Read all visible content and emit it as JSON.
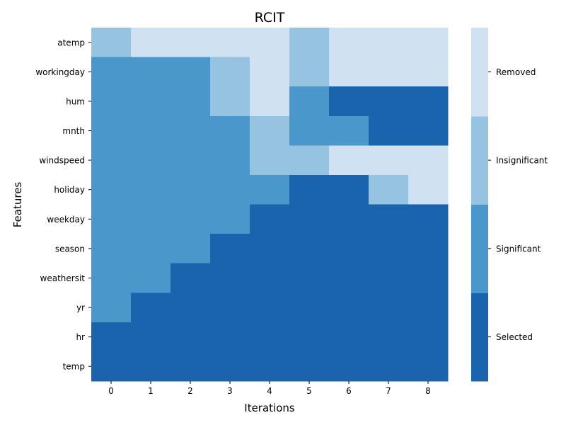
{
  "chart_data": {
    "type": "heatmap",
    "title": "RCIT",
    "xlabel": "Iterations",
    "ylabel": "Features",
    "x": [
      "0",
      "1",
      "2",
      "3",
      "4",
      "5",
      "6",
      "7",
      "8"
    ],
    "y": [
      "atemp",
      "workingday",
      "hum",
      "mnth",
      "windspeed",
      "holiday",
      "weekday",
      "season",
      "weathersit",
      "yr",
      "hr",
      "temp"
    ],
    "legend": {
      "position": "right",
      "categories": [
        "Selected",
        "Significant",
        "Insignificant",
        "Removed"
      ],
      "colors": [
        "#1a64ad",
        "#4a98cb",
        "#96c4e0",
        "#d0e1f2"
      ]
    },
    "values": [
      [
        2,
        3,
        3,
        3,
        3,
        2,
        3,
        3,
        3
      ],
      [
        1,
        1,
        1,
        2,
        3,
        2,
        3,
        3,
        3
      ],
      [
        1,
        1,
        1,
        2,
        3,
        1,
        0,
        0,
        0
      ],
      [
        1,
        1,
        1,
        1,
        2,
        1,
        1,
        0,
        0
      ],
      [
        1,
        1,
        1,
        1,
        2,
        2,
        3,
        3,
        3
      ],
      [
        1,
        1,
        1,
        1,
        1,
        0,
        0,
        2,
        3
      ],
      [
        1,
        1,
        1,
        1,
        0,
        0,
        0,
        0,
        0
      ],
      [
        1,
        1,
        1,
        0,
        0,
        0,
        0,
        0,
        0
      ],
      [
        1,
        1,
        0,
        0,
        0,
        0,
        0,
        0,
        0
      ],
      [
        1,
        0,
        0,
        0,
        0,
        0,
        0,
        0,
        0
      ],
      [
        0,
        0,
        0,
        0,
        0,
        0,
        0,
        0,
        0
      ],
      [
        0,
        0,
        0,
        0,
        0,
        0,
        0,
        0,
        0
      ]
    ]
  }
}
